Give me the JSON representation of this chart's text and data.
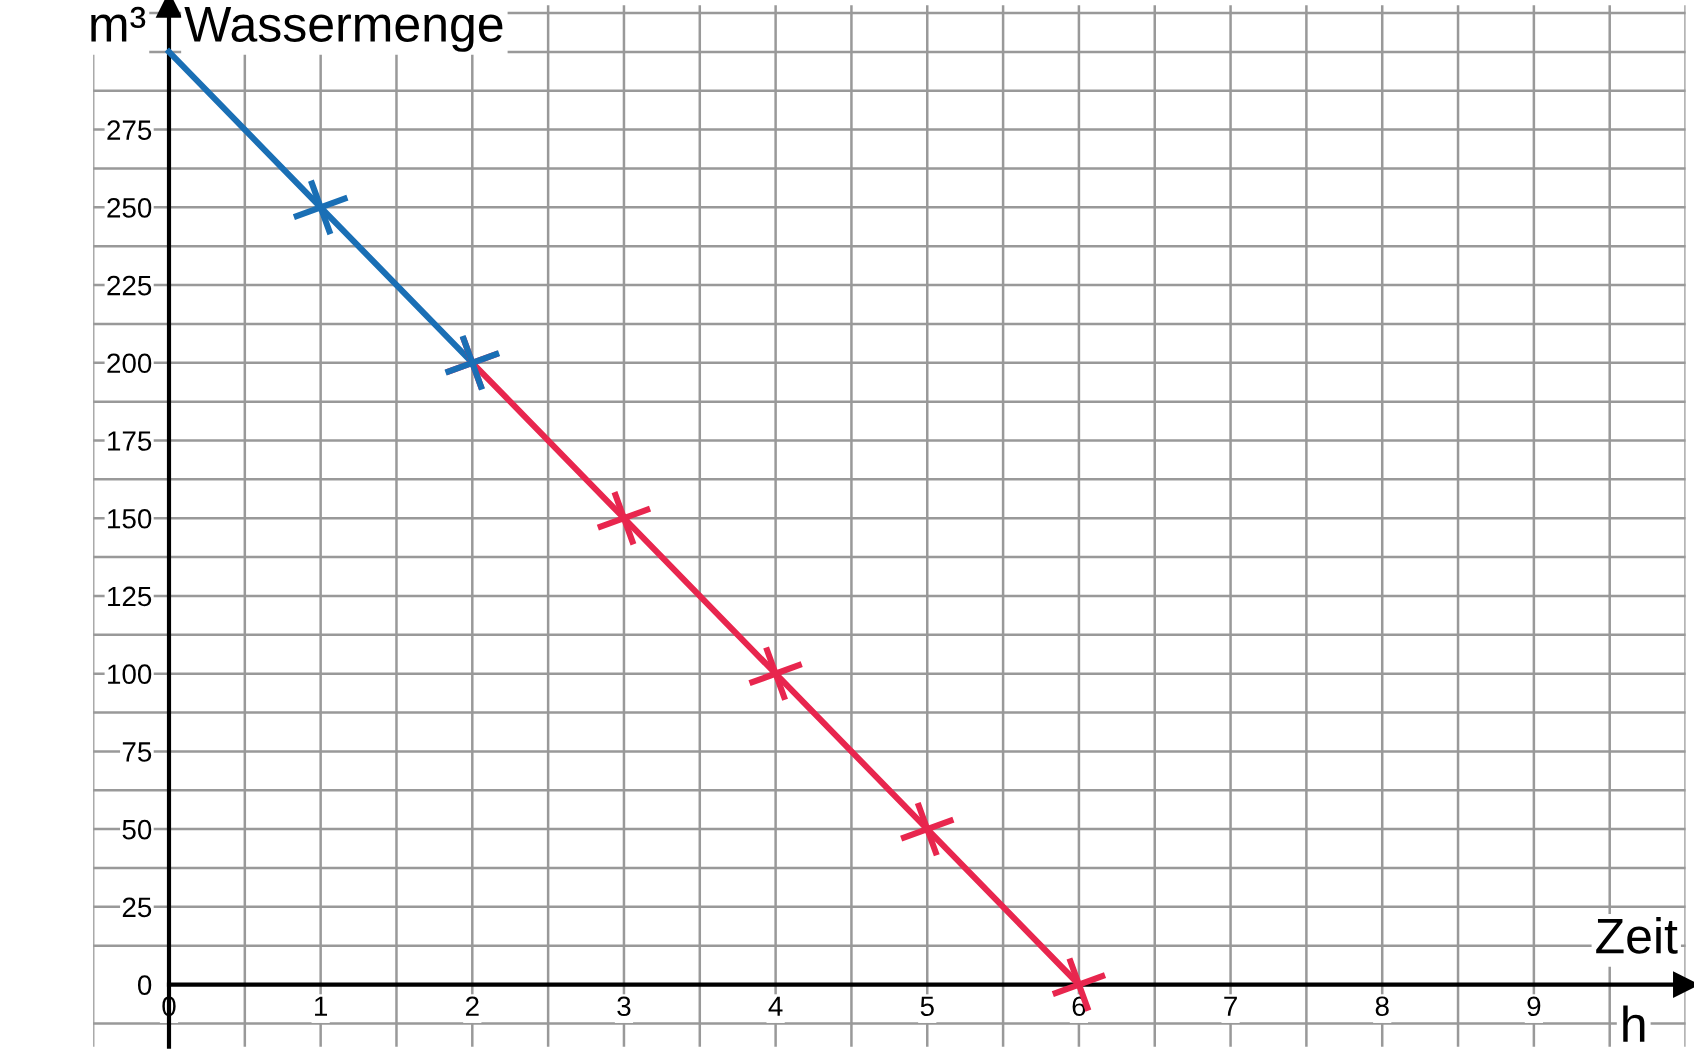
{
  "chart_data": {
    "type": "line",
    "title": "Wassermenge",
    "ylabel": "m³",
    "xlabel": "Zeit",
    "annotations": [
      "h"
    ],
    "xlim": [
      -0.5,
      10
    ],
    "ylim": [
      -20,
      315
    ],
    "xticks": [
      0,
      1,
      2,
      3,
      4,
      5,
      6,
      7,
      8,
      9
    ],
    "yticks": [
      0,
      25,
      50,
      75,
      100,
      125,
      150,
      175,
      200,
      225,
      250,
      275
    ],
    "grid": true,
    "series": [
      {
        "color": "#1a6fb5",
        "x": [
          0,
          1,
          2
        ],
        "values": [
          300,
          250,
          200
        ]
      },
      {
        "marker": "cross",
        "color": "#e8264e",
        "x": [
          2,
          3,
          4,
          5,
          6
        ],
        "values": [
          200,
          150,
          100,
          50,
          0
        ]
      },
      {
        "type": "scatter",
        "marker": "cross",
        "color": "#1a6fb5",
        "x": [
          1,
          2
        ],
        "values": [
          250,
          200
        ]
      }
    ]
  }
}
